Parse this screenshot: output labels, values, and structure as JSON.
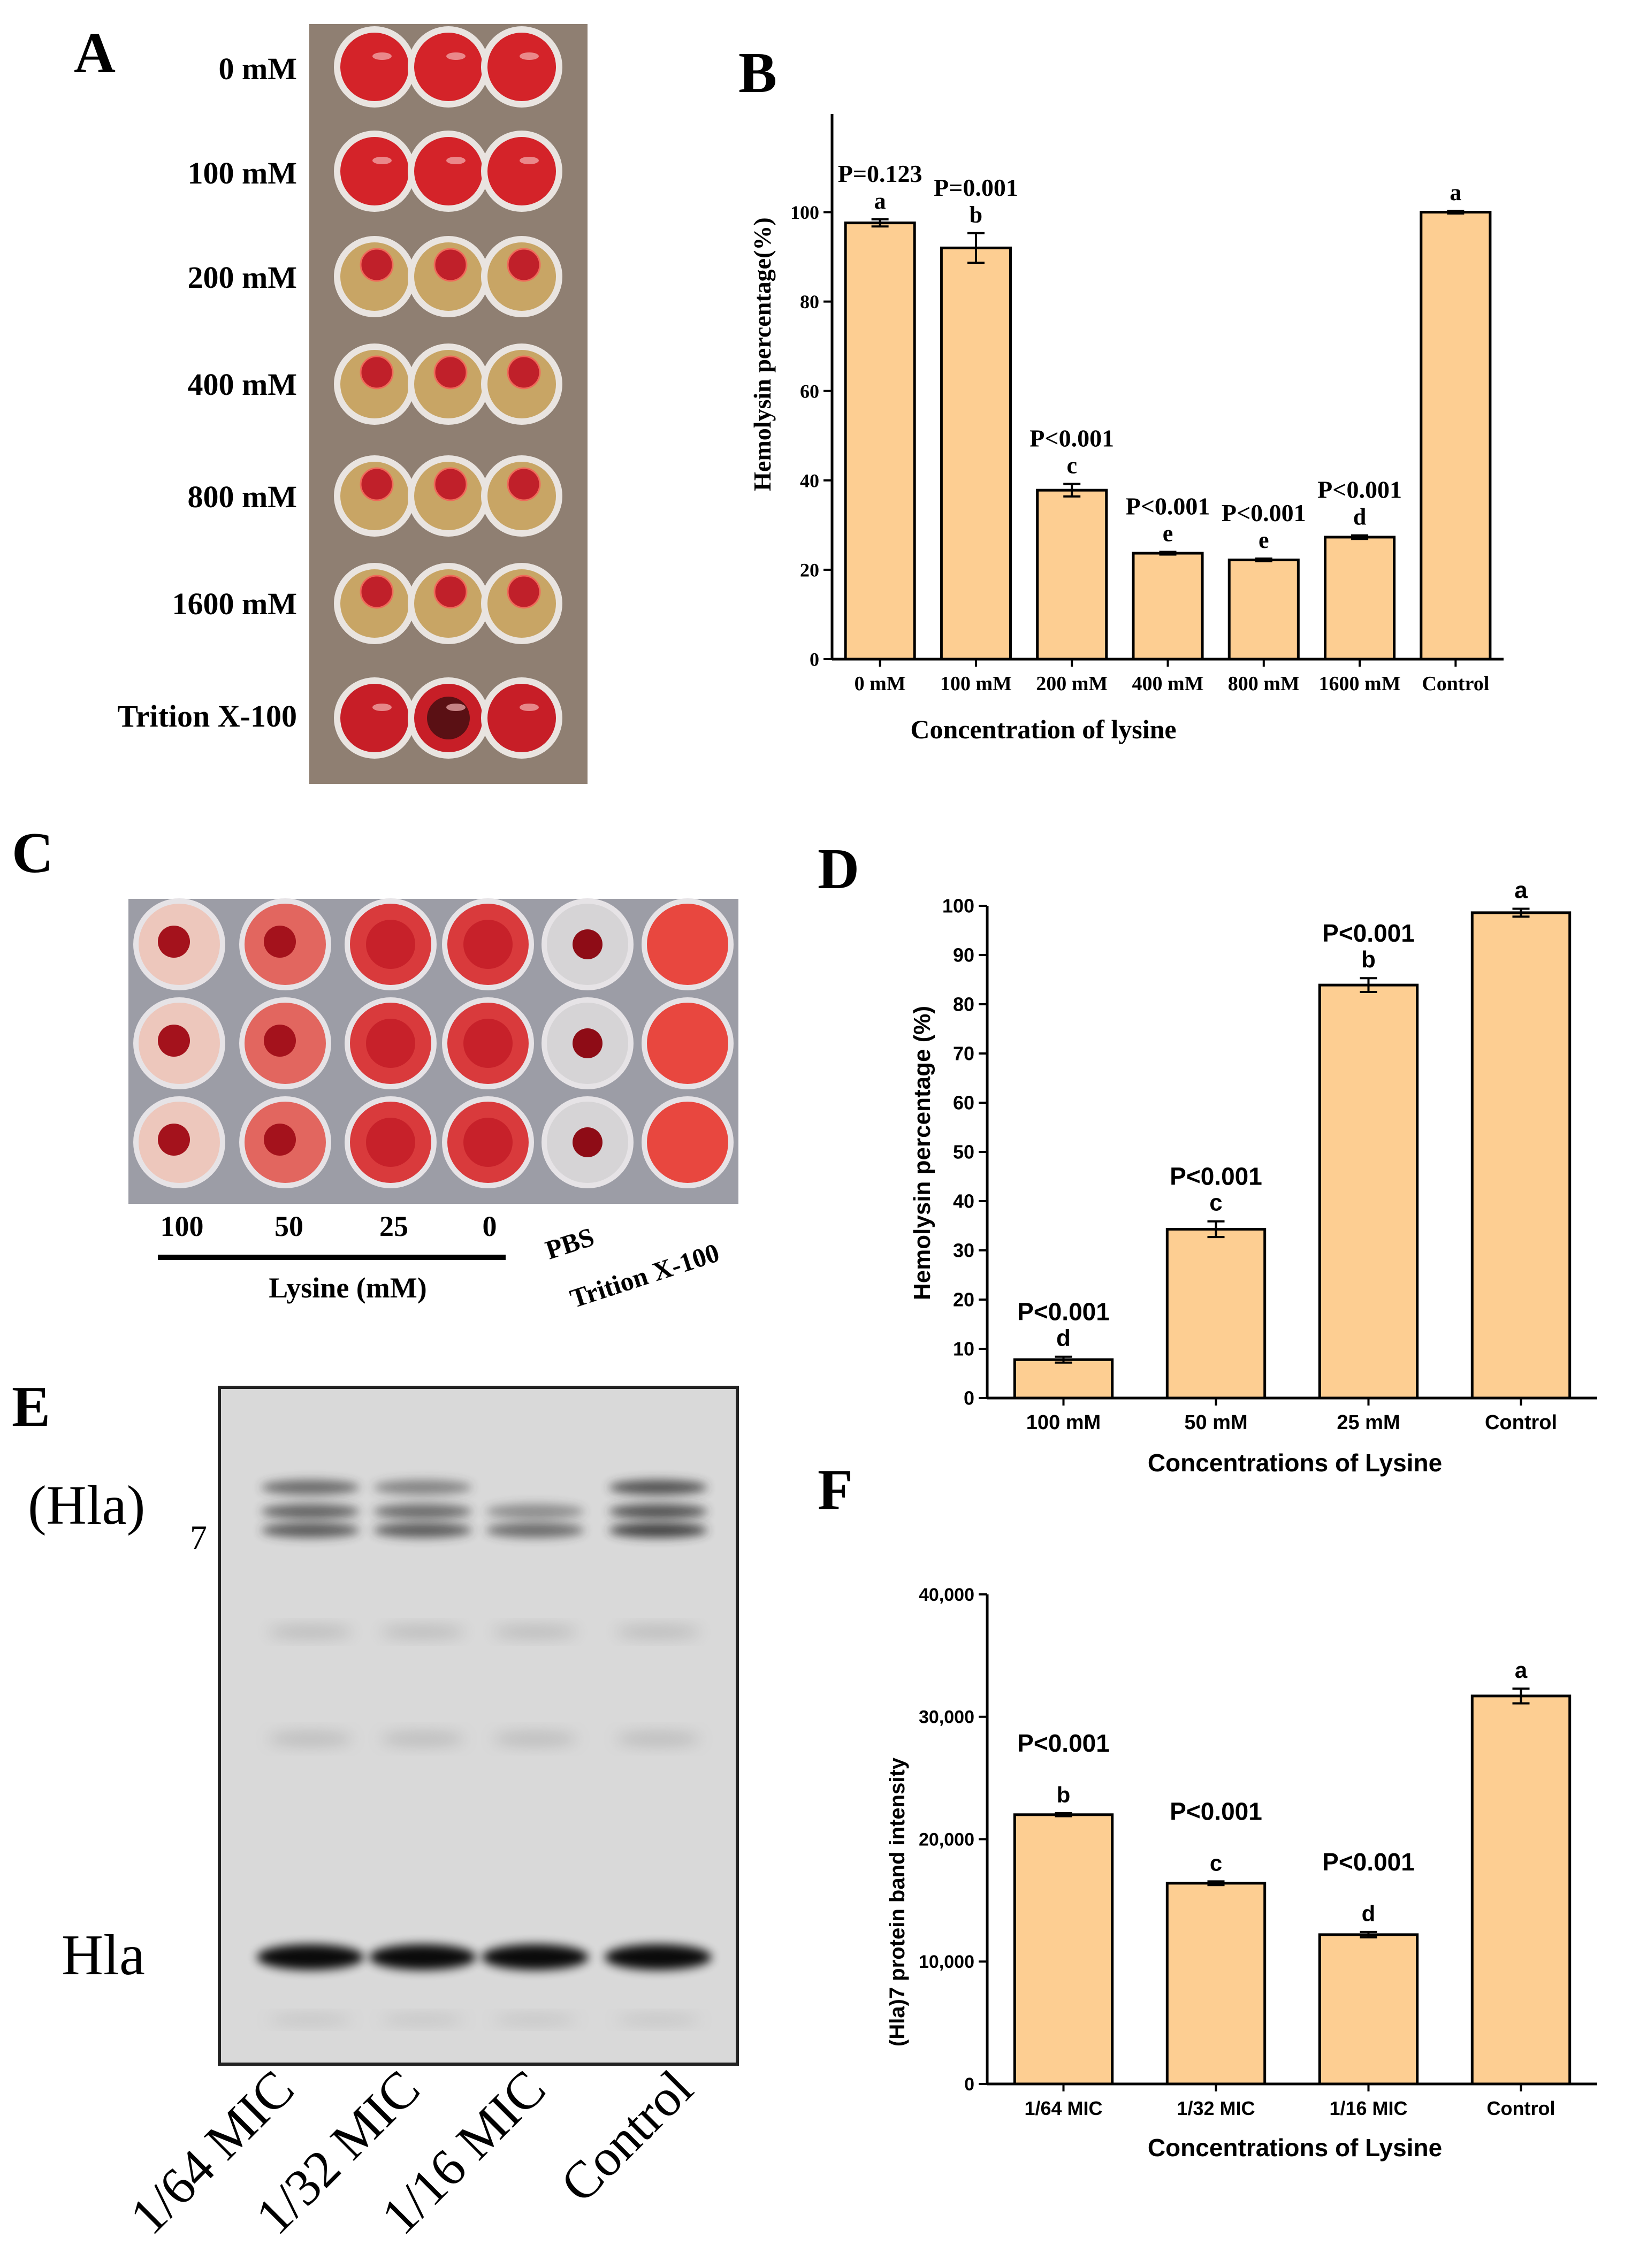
{
  "panel_letters": [
    "A",
    "B",
    "C",
    "D",
    "E",
    "F"
  ],
  "panelA": {
    "row_labels": [
      "0 mM",
      "100 mM",
      "200 mM",
      "400 mM",
      "800 mM",
      "1600 mM",
      "Trition X-100"
    ],
    "well_states": [
      "lysed",
      "lysed",
      "pellet",
      "pellet",
      "pellet",
      "pellet",
      "lysed-dark"
    ]
  },
  "panelC": {
    "column_labels": [
      "100",
      "50",
      "25",
      "0",
      "PBS",
      "Trition X-100"
    ],
    "group_label": "Lysine (mM)",
    "well_states": [
      "pellet-light",
      "pellet-mid",
      "partial",
      "partial",
      "pellet-clear",
      "lysed"
    ]
  },
  "panelE": {
    "band_labels": [
      "(Hla)",
      "7",
      "Hla"
    ],
    "lane_labels": [
      "1/64 MIC",
      "1/32 MIC",
      "1/16 MIC",
      "Control"
    ]
  },
  "colors": {
    "bar": "#FDCE92",
    "axis": "#000000",
    "well_red": "#D8202A",
    "supernatant": "#C8A565"
  },
  "chart_data": [
    {
      "panel": "B",
      "type": "bar",
      "title": "",
      "xlabel": "Concentration of lysine",
      "ylabel": "Hemolysin percentage(%)",
      "categories": [
        "0 mM",
        "100 mM",
        "200 mM",
        "400 mM",
        "800 mM",
        "1600 mM",
        "Control"
      ],
      "values": [
        97.6,
        92.0,
        37.8,
        23.7,
        22.2,
        27.3,
        100.0
      ],
      "errors": [
        0.8,
        3.3,
        1.4,
        0.3,
        0.3,
        0.4,
        0.3
      ],
      "letters": [
        "a",
        "b",
        "c",
        "e",
        "e",
        "d",
        "a"
      ],
      "pvalues": [
        "P=0.123",
        "P=0.001",
        "P<0.001",
        "P<0.001",
        "P<0.001",
        "P<0.001",
        ""
      ],
      "yticks": [
        "0",
        "20",
        "40",
        "60",
        "80",
        "100"
      ],
      "ylim": [
        0,
        110
      ]
    },
    {
      "panel": "D",
      "type": "bar",
      "title": "",
      "xlabel": "Concentrations of Lysine",
      "ylabel": "Hemolysin percentage (%)",
      "categories": [
        "100 mM",
        "50 mM",
        "25 mM",
        "Control"
      ],
      "values": [
        7.8,
        34.3,
        83.9,
        98.6
      ],
      "errors": [
        0.6,
        1.6,
        1.4,
        0.8
      ],
      "letters": [
        "d",
        "c",
        "b",
        "a"
      ],
      "pvalues": [
        "P<0.001",
        "P<0.001",
        "P<0.001",
        ""
      ],
      "yticks": [
        "0",
        "10",
        "20",
        "30",
        "40",
        "50",
        "60",
        "70",
        "80",
        "90",
        "100"
      ],
      "ylim": [
        0,
        100
      ]
    },
    {
      "panel": "F",
      "type": "bar",
      "title": "",
      "xlabel": "Concentrations of Lysine",
      "ylabel": "(Hla)7 protein band intensity",
      "categories": [
        "1/64 MIC",
        "1/32 MIC",
        "1/16 MIC",
        "Control"
      ],
      "values": [
        22000,
        16400,
        12200,
        31700
      ],
      "errors": [
        120,
        150,
        220,
        600
      ],
      "letters": [
        "b",
        "c",
        "d",
        "a"
      ],
      "pvalues": [
        "P<0.001",
        "P<0.001",
        "P<0.001",
        ""
      ],
      "yticks": [
        "0",
        "10,000",
        "20,000",
        "30,000",
        "40,000"
      ],
      "ylim": [
        0,
        40000
      ]
    }
  ]
}
